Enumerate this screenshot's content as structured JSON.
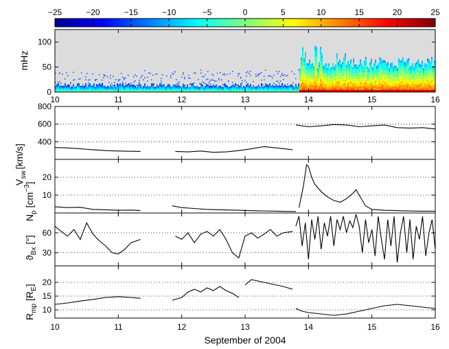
{
  "figure": {
    "xlabel": "September of 2004",
    "xticks": [
      "10",
      "11",
      "12",
      "13",
      "14",
      "15",
      "16"
    ]
  },
  "colorbar": {
    "ticks": [
      "−25",
      "−20",
      "−15",
      "−10",
      "−5",
      "0",
      "5",
      "10",
      "15",
      "20",
      "25"
    ],
    "range": [
      -25,
      25
    ],
    "colormap": "jet"
  },
  "chart_data": [
    {
      "type": "heatmap",
      "panel": "spectrogram",
      "ylabel": "mHz",
      "yticks": [
        "0",
        "50",
        "100"
      ],
      "ylim": [
        0,
        125
      ],
      "xlim": [
        10,
        16
      ],
      "colors": {
        "background": "#dcdcdc"
      },
      "bands": [
        {
          "x_range": [
            10.0,
            13.85
          ],
          "height_mHz": 12,
          "intensity": "moderate"
        },
        {
          "x_range": [
            10.0,
            13.85
          ],
          "height_mHz": 40,
          "intensity": "weak",
          "note": "scattered dots"
        },
        {
          "x_range": [
            13.85,
            16.0
          ],
          "height_mHz": 55,
          "intensity": "strong"
        },
        {
          "x_range": [
            13.85,
            14.8
          ],
          "height_mHz": 120,
          "intensity": "medium",
          "note": "vertical bursts"
        }
      ]
    },
    {
      "type": "line",
      "panel": "vsw",
      "ylabel_main": "V",
      "ylabel_sub": "sw",
      "ylabel_unit": "[km/s]",
      "yticks": [
        "400",
        "600",
        "800"
      ],
      "ylim": [
        200,
        800
      ],
      "xlim": [
        10,
        16
      ],
      "segments": [
        {
          "x": [
            10.0,
            10.2,
            10.4,
            10.6,
            10.8,
            11.0,
            11.2,
            11.35
          ],
          "y": [
            335,
            330,
            320,
            310,
            300,
            295,
            292,
            290
          ]
        },
        {
          "x": [
            11.9,
            12.1,
            12.3,
            12.5,
            12.7,
            12.9,
            13.1,
            13.3,
            13.5,
            13.75
          ],
          "y": [
            290,
            285,
            295,
            280,
            285,
            300,
            320,
            345,
            330,
            310
          ]
        },
        {
          "x": [
            13.8,
            14.0,
            14.2,
            14.4,
            14.6,
            14.8,
            15.0,
            15.2,
            15.4,
            15.6,
            15.8,
            16.0
          ],
          "y": [
            590,
            570,
            580,
            595,
            590,
            570,
            580,
            590,
            560,
            555,
            560,
            545
          ]
        }
      ]
    },
    {
      "type": "line",
      "panel": "np",
      "ylabel_main": "N",
      "ylabel_sub": "p",
      "ylabel_unit": "[cm",
      "ylabel_sup": "−3",
      "ylabel_tail": "]",
      "yticks": [
        "10",
        "20"
      ],
      "ylim": [
        0,
        30
      ],
      "xlim": [
        10,
        16
      ],
      "segments": [
        {
          "x": [
            10.0,
            10.2,
            10.4,
            10.6,
            10.8,
            11.0,
            11.2,
            11.35
          ],
          "y": [
            3.5,
            3.0,
            3.2,
            2.0,
            1.8,
            1.5,
            1.6,
            1.4
          ]
        },
        {
          "x": [
            11.85,
            12.0,
            12.2,
            12.4,
            12.6,
            12.9,
            13.2,
            13.5,
            13.8
          ],
          "y": [
            4,
            3,
            2.5,
            2,
            1.8,
            1.5,
            1.2,
            1.0,
            0.8
          ]
        },
        {
          "x": [
            13.85,
            13.92,
            13.97,
            14.0,
            14.05,
            14.1,
            14.2,
            14.3,
            14.4,
            14.5,
            14.6,
            14.7,
            14.75,
            14.8,
            14.9,
            15.0,
            15.2,
            15.5,
            15.8,
            16.0
          ],
          "y": [
            3,
            15,
            27,
            26,
            20,
            16,
            12,
            9,
            7,
            6,
            8,
            11,
            13,
            10,
            4,
            2,
            1.5,
            1.2,
            1.0,
            1.0
          ]
        }
      ]
    },
    {
      "type": "line",
      "panel": "theta",
      "ylabel_main": "ϑ",
      "ylabel_sub": "Bx",
      "ylabel_unit": "[°]",
      "yticks": [
        "30",
        "60"
      ],
      "ylim": [
        10,
        90
      ],
      "xlim": [
        10,
        16
      ],
      "segments": [
        {
          "x": [
            10.0,
            10.1,
            10.2,
            10.3,
            10.4,
            10.5,
            10.6,
            10.7,
            10.8,
            10.9,
            11.0,
            11.1,
            11.2,
            11.35
          ],
          "y": [
            70,
            62,
            55,
            65,
            50,
            75,
            58,
            48,
            40,
            30,
            28,
            35,
            45,
            50
          ]
        },
        {
          "x": [
            11.9,
            12.0,
            12.1,
            12.2,
            12.3,
            12.4,
            12.5,
            12.6,
            12.7,
            12.8,
            12.9,
            13.0,
            13.1,
            13.2,
            13.3,
            13.4,
            13.5,
            13.6,
            13.75
          ],
          "y": [
            55,
            50,
            60,
            45,
            58,
            62,
            55,
            65,
            50,
            30,
            22,
            55,
            60,
            52,
            58,
            65,
            55,
            60,
            62
          ]
        },
        {
          "x": [
            13.8,
            13.85,
            13.9,
            13.95,
            14.0,
            14.05,
            14.1,
            14.15,
            14.2,
            14.25,
            14.3,
            14.35,
            14.4,
            14.45,
            14.5,
            14.55,
            14.6,
            14.65,
            14.7,
            14.75,
            14.8,
            14.85,
            14.9,
            14.95,
            15.0,
            15.05,
            15.1,
            15.15,
            15.2,
            15.25,
            15.3,
            15.35,
            15.4,
            15.45,
            15.5,
            15.55,
            15.6,
            15.65,
            15.7,
            15.75,
            15.8,
            15.85,
            15.9,
            15.95,
            16.0
          ],
          "y": [
            70,
            85,
            40,
            75,
            20,
            80,
            50,
            85,
            35,
            75,
            55,
            85,
            40,
            80,
            65,
            85,
            60,
            78,
            68,
            88,
            70,
            30,
            80,
            45,
            65,
            25,
            85,
            50,
            20,
            80,
            40,
            85,
            15,
            60,
            85,
            30,
            80,
            20,
            70,
            50,
            85,
            25,
            60,
            80,
            35
          ]
        }
      ]
    },
    {
      "type": "line",
      "panel": "rmp",
      "ylabel_main": "R",
      "ylabel_sub": "mp",
      "ylabel_unit": "[R",
      "ylabel_unit_sub": "E",
      "ylabel_tail": "]",
      "yticks": [
        "10",
        "15",
        "20"
      ],
      "ylim": [
        7,
        26
      ],
      "xlim": [
        10,
        16
      ],
      "segments": [
        {
          "x": [
            10.0,
            10.2,
            10.4,
            10.6,
            10.8,
            11.0,
            11.2,
            11.35
          ],
          "y": [
            12,
            12.5,
            13.2,
            13.8,
            14.5,
            14.8,
            14.5,
            14.2
          ]
        },
        {
          "x": [
            11.85,
            12.0,
            12.1,
            12.2,
            12.3,
            12.4,
            12.5,
            12.6,
            12.7,
            12.8,
            12.9
          ],
          "y": [
            13.5,
            14.5,
            16.5,
            17.5,
            16.5,
            18,
            17,
            18.5,
            17,
            16,
            14.5
          ]
        },
        {
          "x": [
            13.0,
            13.1,
            13.2,
            13.3,
            13.4,
            13.5,
            13.6,
            13.75
          ],
          "y": [
            19,
            21,
            20.5,
            20,
            19.5,
            19,
            18.5,
            17.5
          ]
        },
        {
          "x": [
            13.8,
            13.9,
            14.0,
            14.2,
            14.4,
            14.6,
            14.8,
            15.0,
            15.2,
            15.4,
            15.6,
            15.8,
            16.0
          ],
          "y": [
            10.5,
            9.5,
            9.0,
            8.5,
            8.0,
            8.5,
            9.5,
            10.5,
            11.5,
            12.0,
            11.5,
            11.0,
            10.5
          ]
        }
      ]
    }
  ]
}
